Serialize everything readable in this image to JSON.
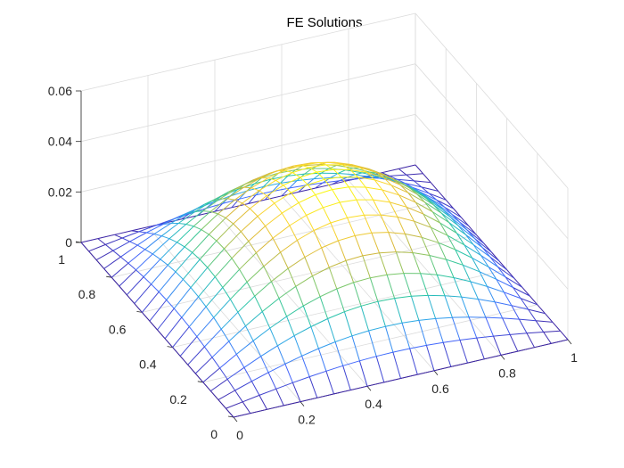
{
  "chart_data": {
    "type": "surface-mesh",
    "title": "FE Solutions",
    "xlabel": "",
    "ylabel": "",
    "zlabel": "",
    "xlim": [
      0,
      1
    ],
    "ylim": [
      0,
      1
    ],
    "zlim": [
      0,
      0.06
    ],
    "xticks": [
      0,
      0.2,
      0.4,
      0.6,
      0.8,
      1
    ],
    "yticks": [
      0,
      0.2,
      0.4,
      0.6,
      0.8,
      1
    ],
    "zticks": [
      0,
      0.02,
      0.04,
      0.06
    ],
    "xtick_labels": [
      "0",
      "0.2",
      "0.4",
      "0.6",
      "0.8",
      "1"
    ],
    "ytick_labels": [
      "0",
      "0.2",
      "0.4",
      "0.6",
      "0.8",
      "1"
    ],
    "ztick_labels": [
      "0",
      "0.02",
      "0.04",
      "0.06"
    ],
    "grid": true,
    "mesh_divisions": 20,
    "peak_value": 0.0442,
    "colormap": [
      "#3e26a8",
      "#4367fd",
      "#2ea6ea",
      "#26c5a5",
      "#7cc86a",
      "#d7b73a",
      "#fbd630",
      "#f9fb0e"
    ],
    "function": "u(x,y) ≈ peak · sin(πx)·sin(πy)"
  }
}
